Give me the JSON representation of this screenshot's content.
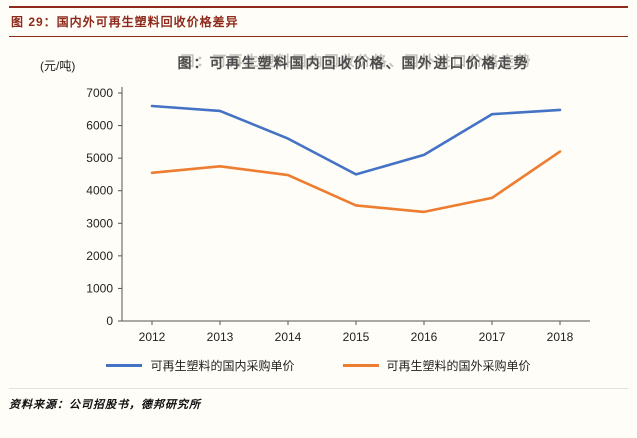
{
  "colors": {
    "accent": "#8e2a1c"
  },
  "header": {
    "label": "图 29：国内外可再生塑料回收价格差异"
  },
  "source": {
    "text": "资料来源：公司招股书，德邦研究所"
  },
  "chart_data": {
    "type": "line",
    "title": "图：可再生塑料国内回收价格、国外进口价格走势",
    "unit_label": "(元/吨)",
    "categories": [
      "2012",
      "2013",
      "2014",
      "2015",
      "2016",
      "2017",
      "2018"
    ],
    "series": [
      {
        "name": "可再生塑料的国内采购单价",
        "color": "#4472c4",
        "values": [
          6600,
          6450,
          5600,
          4500,
          5100,
          6350,
          6480
        ]
      },
      {
        "name": "可再生塑料的国外采购单价",
        "color": "#ed7d31",
        "values": [
          4550,
          4750,
          4480,
          3550,
          3350,
          3780,
          5200
        ]
      }
    ],
    "ylim": [
      0,
      7000
    ],
    "ytick_step": 1000,
    "grid": false,
    "legend_position": "bottom"
  }
}
